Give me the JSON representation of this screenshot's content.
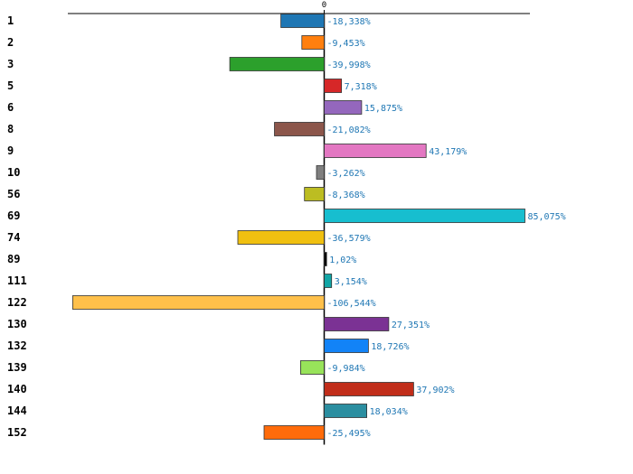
{
  "chart_data": {
    "type": "bar",
    "orientation": "horizontal",
    "title": "",
    "xlabel": "",
    "ylabel": "",
    "xlim": [
      -110,
      85
    ],
    "zero_tick_label": "0",
    "value_suffix": "%",
    "decimal_separator": ",",
    "grid": false,
    "legend": "none",
    "categories": [
      "1",
      "2",
      "3",
      "5",
      "6",
      "8",
      "9",
      "10",
      "56",
      "69",
      "74",
      "89",
      "111",
      "122",
      "130",
      "132",
      "139",
      "140",
      "144",
      "152"
    ],
    "values": [
      -18.338,
      -9.453,
      -39.998,
      7.318,
      15.875,
      -21.082,
      43.179,
      -3.262,
      -8.368,
      85.075,
      -36.579,
      1.02,
      3.154,
      -106.544,
      27.351,
      18.726,
      -9.984,
      37.902,
      18.034,
      -25.495
    ],
    "value_labels": [
      "-18,338%",
      "-9,453%",
      "-39,998%",
      "7,318%",
      "15,875%",
      "-21,082%",
      "43,179%",
      "-3,262%",
      "-8,368%",
      "85,075%",
      "-36,579%",
      "1,02%",
      "3,154%",
      "-106,544%",
      "27,351%",
      "18,726%",
      "-9,984%",
      "37,902%",
      "18,034%",
      "-25,495%"
    ],
    "colors": [
      "#1f77b4",
      "#ff7f0e",
      "#2ca02c",
      "#d62728",
      "#9467bd",
      "#8c564b",
      "#e377c2",
      "#7f7f7f",
      "#bcbd22",
      "#17becf",
      "#f0c010",
      "#000000",
      "#12a5a5",
      "#ffc04a",
      "#7b3294",
      "#1283f7",
      "#98e35a",
      "#c12d1a",
      "#2b8ea0",
      "#ff6b0a"
    ]
  }
}
